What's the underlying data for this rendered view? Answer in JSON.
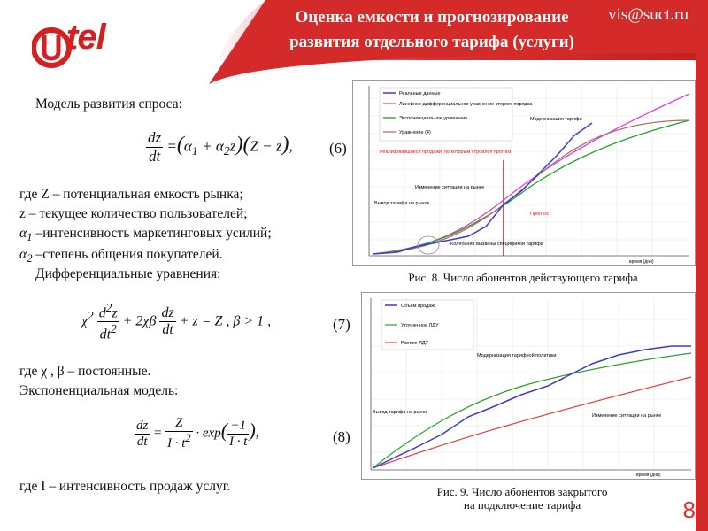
{
  "header": {
    "title_line1": "Оценка емкости и прогнозирование",
    "title_line2": "развития отдельного тарифа (услуги)",
    "email": "vis@suct.ru",
    "logo_text": "Utel"
  },
  "left": {
    "model_heading": "Модель развития спроса:",
    "eq6_number": "(6)",
    "where1": "где Z – потенциальная емкость рынка;",
    "where2": "z  – текущее количество пользователей;",
    "where3": "–интенсивность маркетинговых усилий;",
    "where4": "–степень общения покупателей.",
    "diff_heading": "Дифференциальные уравнения:",
    "eq7_number": "(7)",
    "where_chi": "где  χ , β  – постоянные.",
    "exp_heading": "Экспоненциальная модель:",
    "eq8_number": "(8)",
    "where_I": "где I  – интенсивность продаж услуг."
  },
  "chart8": {
    "caption": "Рис. 8. Число абонентов действующего тарифа",
    "legend": [
      "Реальные данные",
      "Линейное дифференциальное уравнение второго порядка",
      "Экспоненциальное уравнение",
      "Уравнение (4)"
    ],
    "annotations": [
      "Модернизация тарифа",
      "Реализовавшиеся продажи, по которым строился прогноз",
      "Изменение ситуации на рынке",
      "Вывод тарифа на рынок",
      "Прогноз",
      "Колебания вызваны спецификой тарифа"
    ],
    "xlabel": "время (дни)",
    "colors": {
      "real": "#3b3bd6",
      "lde": "#e040e0",
      "exp": "#2aa02a",
      "eq4": "#b0706a"
    }
  },
  "chart9": {
    "caption_line1": "Рис. 9. Число абонентов закрытого",
    "caption_line2": "на подключение тарифа",
    "legend": [
      "Объем продаж",
      "Уточненное ЛДУ",
      "Раннее ЛДУ"
    ],
    "annotations": [
      "Модернизация тарифной политики",
      "Вывод тарифа на рынок",
      "Изменение ситуации на рынке"
    ],
    "xlabel": "время (дни)",
    "colors": {
      "sales": "#3b3bd6",
      "refined": "#2aa02a",
      "early": "#e04040"
    }
  },
  "page_number": "8"
}
